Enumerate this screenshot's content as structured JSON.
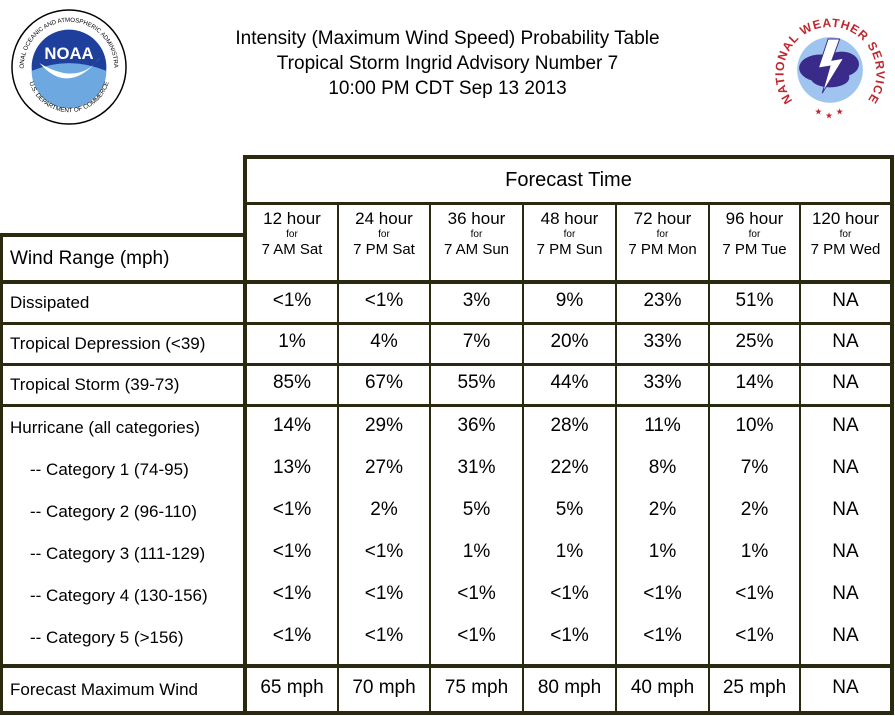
{
  "header": {
    "line1": "Intensity (Maximum Wind Speed) Probability Table",
    "line2": "Tropical Storm Ingrid Advisory Number 7",
    "line3": "10:00 PM CDT Sep 13 2013"
  },
  "logos": {
    "noaa_text": "NOAA",
    "noaa_ring": "NATIONAL OCEANIC AND ATMOSPHERIC ADMINISTRATION",
    "noaa_ring_bottom": "U.S. DEPARTMENT OF COMMERCE",
    "nws_ring": "NATIONAL WEATHER SERVICE"
  },
  "table": {
    "forecast_time_label": "Forecast Time",
    "wind_range_label": "Wind Range (mph)",
    "for_label": "for",
    "columns": [
      {
        "hours": "12 hour",
        "when": "7 AM Sat"
      },
      {
        "hours": "24 hour",
        "when": "7 PM Sat"
      },
      {
        "hours": "36 hour",
        "when": "7 AM Sun"
      },
      {
        "hours": "48 hour",
        "when": "7 PM Sun"
      },
      {
        "hours": "72 hour",
        "when": "7 PM Mon"
      },
      {
        "hours": "96 hour",
        "when": "7 PM Tue"
      },
      {
        "hours": "120 hour",
        "when": "7 PM Wed"
      }
    ],
    "rows": [
      {
        "label": "Dissipated",
        "values": [
          "<1%",
          "<1%",
          "3%",
          "9%",
          "23%",
          "51%",
          "NA"
        ]
      },
      {
        "label": "Tropical Depression (<39)",
        "values": [
          "1%",
          "4%",
          "7%",
          "20%",
          "33%",
          "25%",
          "NA"
        ]
      },
      {
        "label": "Tropical Storm (39-73)",
        "values": [
          "85%",
          "67%",
          "55%",
          "44%",
          "33%",
          "14%",
          "NA"
        ]
      },
      {
        "label": "Hurricane (all categories)",
        "values": [
          "14%",
          "29%",
          "36%",
          "28%",
          "11%",
          "10%",
          "NA"
        ]
      },
      {
        "label": "-- Category 1 (74-95)",
        "values": [
          "13%",
          "27%",
          "31%",
          "22%",
          "8%",
          "7%",
          "NA"
        ]
      },
      {
        "label": "-- Category 2 (96-110)",
        "values": [
          "<1%",
          "2%",
          "5%",
          "5%",
          "2%",
          "2%",
          "NA"
        ]
      },
      {
        "label": "-- Category 3 (111-129)",
        "values": [
          "<1%",
          "<1%",
          "1%",
          "1%",
          "1%",
          "1%",
          "NA"
        ]
      },
      {
        "label": "-- Category 4 (130-156)",
        "values": [
          "<1%",
          "<1%",
          "<1%",
          "<1%",
          "<1%",
          "<1%",
          "NA"
        ]
      },
      {
        "label": "-- Category 5 (>156)",
        "values": [
          "<1%",
          "<1%",
          "<1%",
          "<1%",
          "<1%",
          "<1%",
          "NA"
        ]
      },
      {
        "label": "Forecast Maximum Wind",
        "values": [
          "65 mph",
          "70 mph",
          "75 mph",
          "80 mph",
          "40 mph",
          "25 mph",
          "NA"
        ]
      }
    ]
  }
}
